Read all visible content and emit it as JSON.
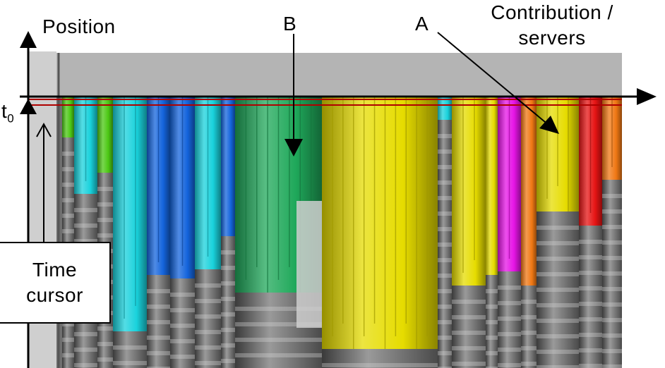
{
  "labels": {
    "position": "Position",
    "b": "B",
    "a": "A",
    "contribution_line1": "Contribution /",
    "contribution_line2": "servers",
    "t0_main": "t",
    "t0_sub": "0",
    "time_cursor_line1": "Time",
    "time_cursor_line2": "cursor"
  },
  "colors": {
    "top_band": "#b4b4b4",
    "time_line": "#b00000",
    "background": "#ffffff"
  },
  "palette": {
    "green": "#1fa85a",
    "cyan": "#19d2dc",
    "blue": "#1464dc",
    "yellow": "#e6dc00",
    "magenta": "#e614e6",
    "orange": "#f07814",
    "red": "#e61414",
    "lime": "#4cc814"
  },
  "columns": [
    {
      "color": "lime"
    },
    {
      "color": "cyan"
    },
    {
      "color": "lime"
    },
    {
      "color": "cyan"
    },
    {
      "color": "blue"
    },
    {
      "color": "blue"
    },
    {
      "color": "cyan"
    },
    {
      "color": "blue"
    },
    {
      "color": "green"
    },
    {
      "color": "yellow"
    },
    {
      "color": "cyan"
    },
    {
      "color": "yellow"
    },
    {
      "color": "yellow"
    },
    {
      "color": "magenta"
    },
    {
      "color": "orange"
    },
    {
      "color": "yellow"
    },
    {
      "color": "red"
    },
    {
      "color": "orange"
    }
  ]
}
